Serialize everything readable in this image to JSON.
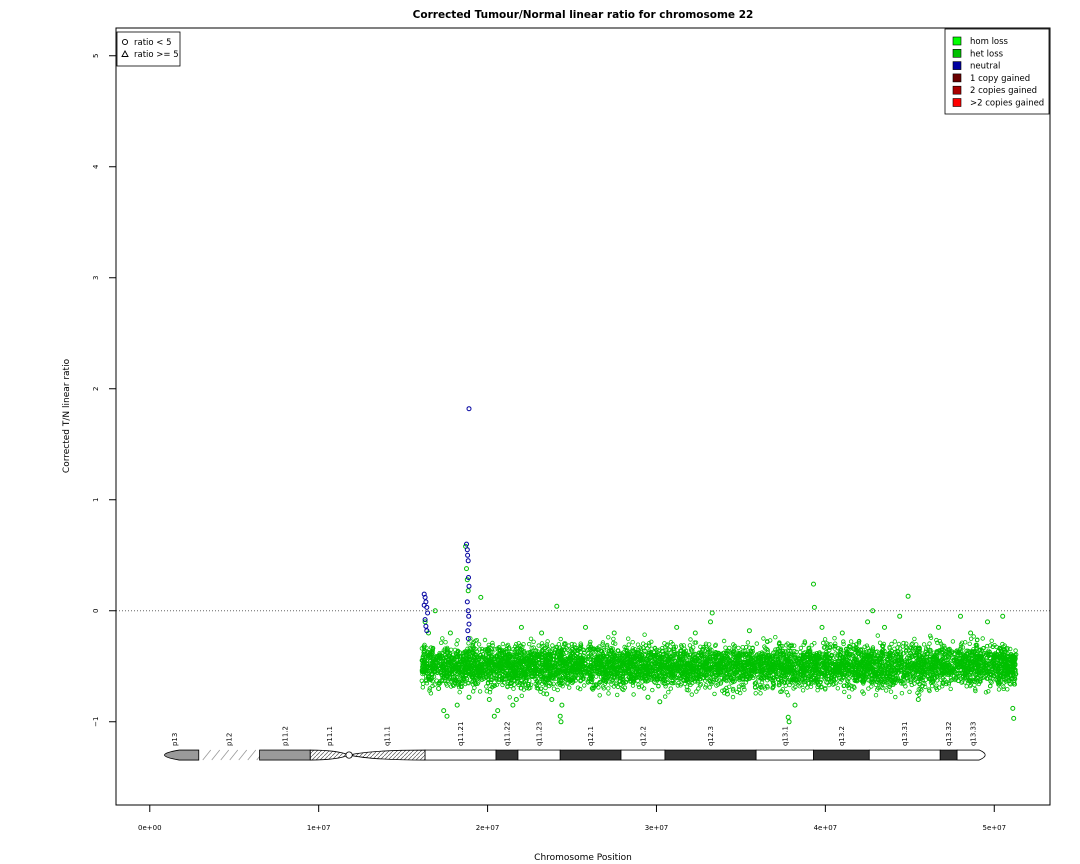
{
  "chart_data": {
    "type": "scatter",
    "title": "Corrected Tumour/Normal linear ratio for chromosome  22",
    "xlabel": "Chromosome Position",
    "ylabel": "Corrected T/N linear ratio",
    "xlim": [
      -2000000,
      53300000
    ],
    "ylim": [
      -1.75,
      5.25
    ],
    "xticks": [
      {
        "value": 0,
        "label": "0e+00"
      },
      {
        "value": 10000000,
        "label": "1e+07"
      },
      {
        "value": 20000000,
        "label": "2e+07"
      },
      {
        "value": 30000000,
        "label": "3e+07"
      },
      {
        "value": 40000000,
        "label": "4e+07"
      },
      {
        "value": 50000000,
        "label": "5e+07"
      }
    ],
    "yticks": [
      {
        "value": -1,
        "label": "−1"
      },
      {
        "value": 0,
        "label": "0"
      },
      {
        "value": 1,
        "label": "1"
      },
      {
        "value": 2,
        "label": "2"
      },
      {
        "value": 3,
        "label": "3"
      },
      {
        "value": 4,
        "label": "4"
      },
      {
        "value": 5,
        "label": "5"
      }
    ],
    "reference_line": {
      "y": 0,
      "style": "dotted"
    },
    "shape_legend": {
      "position": "top-left",
      "items": [
        {
          "shape": "circle",
          "label": "ratio < 5"
        },
        {
          "shape": "triangle",
          "label": "ratio >= 5"
        }
      ]
    },
    "color_legend": {
      "position": "top-right",
      "items": [
        {
          "label": "hom loss",
          "color": "#00ff00"
        },
        {
          "label": "het loss",
          "color": "#00c000"
        },
        {
          "label": "neutral",
          "color": "#0000a0"
        },
        {
          "label": "1 copy gained",
          "color": "#6a0000"
        },
        {
          "label": "2 copies gained",
          "color": "#aa0000"
        },
        {
          "label": ">2 copies gained",
          "color": "#ff0000"
        }
      ]
    },
    "series": [
      {
        "status": "het loss",
        "color": "#00c000",
        "dense_band": {
          "x_start": 16100000,
          "x_end": 51300000,
          "y_low": -0.7,
          "y_high": -0.3
        },
        "points": [
          [
            16300000,
            -0.1
          ],
          [
            16500000,
            -0.2
          ],
          [
            16700000,
            -0.6
          ],
          [
            16900000,
            0.0
          ],
          [
            17100000,
            -0.7
          ],
          [
            17400000,
            -0.9
          ],
          [
            17600000,
            -0.95
          ],
          [
            17800000,
            -0.2
          ],
          [
            18200000,
            -0.85
          ],
          [
            18500000,
            -0.65
          ],
          [
            18700000,
            0.58
          ],
          [
            18750000,
            0.38
          ],
          [
            18800000,
            0.28
          ],
          [
            18850000,
            0.18
          ],
          [
            18900000,
            -0.78
          ],
          [
            19100000,
            -0.6
          ],
          [
            19300000,
            -0.4
          ],
          [
            19600000,
            0.12
          ],
          [
            20100000,
            -0.8
          ],
          [
            20400000,
            -0.95
          ],
          [
            20600000,
            -0.9
          ],
          [
            21500000,
            -0.85
          ],
          [
            21700000,
            -0.8
          ],
          [
            22000000,
            -0.15
          ],
          [
            23200000,
            -0.2
          ],
          [
            23500000,
            -0.75
          ],
          [
            23800000,
            -0.8
          ],
          [
            24100000,
            0.04
          ],
          [
            24300000,
            -0.95
          ],
          [
            24350000,
            -1.0
          ],
          [
            24400000,
            -0.85
          ],
          [
            25800000,
            -0.15
          ],
          [
            27500000,
            -0.2
          ],
          [
            29500000,
            -0.78
          ],
          [
            30200000,
            -0.82
          ],
          [
            31200000,
            -0.15
          ],
          [
            32300000,
            -0.2
          ],
          [
            33200000,
            -0.1
          ],
          [
            33300000,
            -0.02
          ],
          [
            34200000,
            -0.75
          ],
          [
            35500000,
            -0.18
          ],
          [
            37800000,
            -0.96
          ],
          [
            37850000,
            -1.0
          ],
          [
            38200000,
            -0.85
          ],
          [
            39300000,
            0.24
          ],
          [
            39350000,
            0.03
          ],
          [
            39800000,
            -0.15
          ],
          [
            41000000,
            -0.2
          ],
          [
            42500000,
            -0.1
          ],
          [
            42800000,
            0.0
          ],
          [
            43500000,
            -0.15
          ],
          [
            44400000,
            -0.05
          ],
          [
            44900000,
            0.13
          ],
          [
            45500000,
            -0.8
          ],
          [
            46700000,
            -0.15
          ],
          [
            48000000,
            -0.05
          ],
          [
            48600000,
            -0.2
          ],
          [
            49600000,
            -0.1
          ],
          [
            50500000,
            -0.05
          ],
          [
            51100000,
            -0.88
          ],
          [
            51150000,
            -0.97
          ]
        ]
      },
      {
        "status": "neutral",
        "color": "#0000a0",
        "points": [
          [
            16250000,
            0.15
          ],
          [
            16300000,
            0.12
          ],
          [
            16350000,
            0.08
          ],
          [
            16400000,
            0.03
          ],
          [
            16450000,
            -0.02
          ],
          [
            16300000,
            -0.08
          ],
          [
            16350000,
            -0.14
          ],
          [
            16250000,
            0.05
          ],
          [
            16400000,
            -0.18
          ],
          [
            18750000,
            0.6
          ],
          [
            18800000,
            0.55
          ],
          [
            18820000,
            0.5
          ],
          [
            18850000,
            0.45
          ],
          [
            18870000,
            0.3
          ],
          [
            18900000,
            0.22
          ],
          [
            18800000,
            0.08
          ],
          [
            18850000,
            0.0
          ],
          [
            18880000,
            -0.05
          ],
          [
            18900000,
            -0.12
          ],
          [
            18830000,
            -0.18
          ],
          [
            18860000,
            -0.25
          ],
          [
            18900000,
            1.82
          ]
        ]
      }
    ],
    "ideogram": {
      "y": -1.3,
      "bands": [
        {
          "name": "p13",
          "start": 0,
          "end": 2900000,
          "stain": "gpos50",
          "color": "#9a9a9a",
          "shape": "left-cap"
        },
        {
          "name": "p12",
          "start": 2900000,
          "end": 6500000,
          "stain": "stalk",
          "color": "#ffffff",
          "shape": "stalk"
        },
        {
          "name": "p11.2",
          "start": 6500000,
          "end": 9500000,
          "stain": "gpos75",
          "color": "#9a9a9a",
          "shape": "rect"
        },
        {
          "name": "p11.1",
          "start": 9500000,
          "end": 11800000,
          "stain": "acen",
          "color": "#ffffff",
          "shape": "acen-left"
        },
        {
          "name": "q11.1",
          "start": 11800000,
          "end": 16300000,
          "stain": "acen",
          "color": "#ffffff",
          "shape": "acen-right"
        },
        {
          "name": "q11.21",
          "start": 16300000,
          "end": 20500000,
          "stain": "gneg",
          "color": "#ffffff",
          "shape": "rect"
        },
        {
          "name": "q11.22",
          "start": 20500000,
          "end": 21800000,
          "stain": "gpos",
          "color": "#333333",
          "shape": "rect"
        },
        {
          "name": "q11.23",
          "start": 21800000,
          "end": 24300000,
          "stain": "gneg",
          "color": "#ffffff",
          "shape": "rect"
        },
        {
          "name": "q12.1",
          "start": 24300000,
          "end": 27900000,
          "stain": "gpos",
          "color": "#333333",
          "shape": "rect"
        },
        {
          "name": "q12.2",
          "start": 27900000,
          "end": 30500000,
          "stain": "gneg",
          "color": "#ffffff",
          "shape": "rect"
        },
        {
          "name": "q12.3",
          "start": 30500000,
          "end": 35900000,
          "stain": "gpos",
          "color": "#333333",
          "shape": "rect"
        },
        {
          "name": "q13.1",
          "start": 35900000,
          "end": 39300000,
          "stain": "gneg",
          "color": "#ffffff",
          "shape": "rect"
        },
        {
          "name": "q13.2",
          "start": 39300000,
          "end": 42600000,
          "stain": "gpos",
          "color": "#333333",
          "shape": "rect"
        },
        {
          "name": "q13.31",
          "start": 42600000,
          "end": 46800000,
          "stain": "gneg",
          "color": "#ffffff",
          "shape": "rect"
        },
        {
          "name": "q13.32",
          "start": 46800000,
          "end": 47800000,
          "stain": "gpos",
          "color": "#333333",
          "shape": "rect"
        },
        {
          "name": "q13.33",
          "start": 47800000,
          "end": 49700000,
          "stain": "gneg",
          "color": "#ffffff",
          "shape": "right-cap"
        }
      ]
    }
  }
}
